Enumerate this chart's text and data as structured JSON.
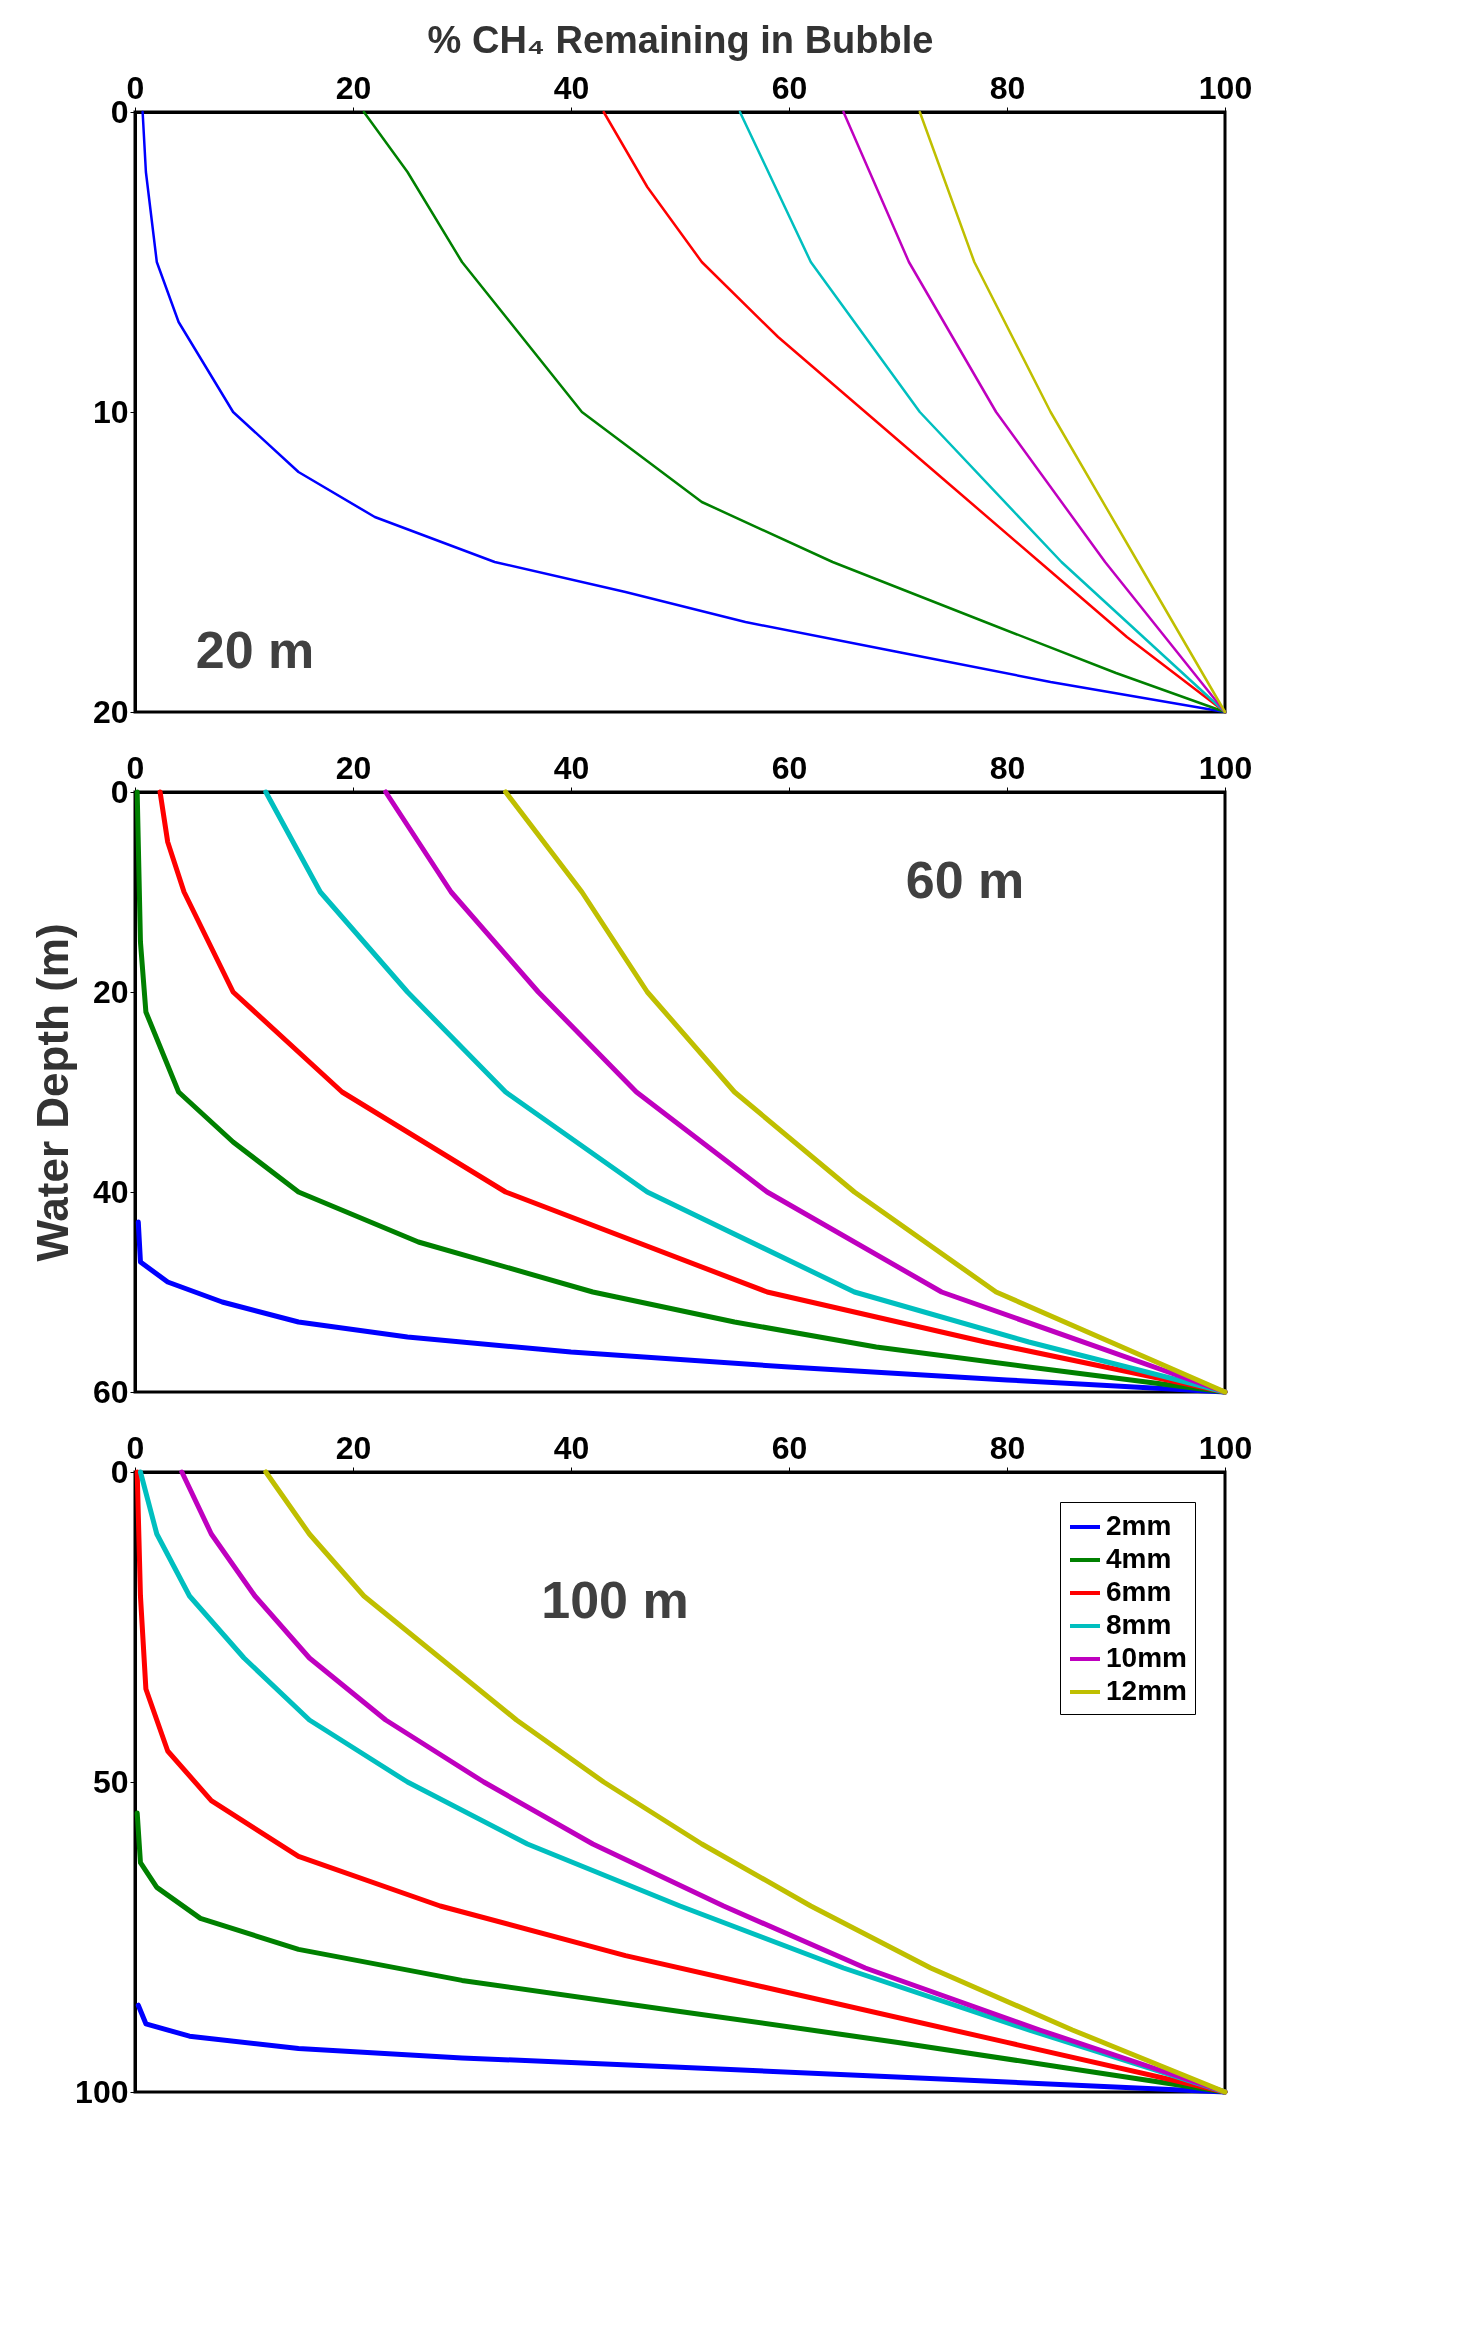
{
  "chart_data": [
    {
      "type": "line",
      "xlabel": "% CH₄ Remaining in Bubble",
      "annotations": [
        "20 m"
      ],
      "xlim": [
        0,
        100
      ],
      "xticks": [
        0,
        20,
        40,
        60,
        80,
        100
      ],
      "ylim": [
        20,
        0
      ],
      "yticks": [
        0,
        10,
        20
      ],
      "grid": false,
      "series": [
        {
          "color": "#0000ff",
          "x": [
            0.7,
            1,
            2,
            4,
            9,
            15,
            22,
            33,
            45,
            56,
            70,
            84,
            100
          ],
          "values": [
            0,
            2,
            5,
            7,
            10,
            12,
            13.5,
            15,
            16,
            17,
            18,
            19,
            20
          ]
        },
        {
          "color": "#008000",
          "x": [
            21,
            25,
            30,
            41,
            52,
            64,
            78,
            90,
            100
          ],
          "values": [
            0,
            2,
            5,
            10,
            13,
            15,
            17,
            18.7,
            20
          ]
        },
        {
          "color": "#ff0000",
          "x": [
            43,
            47,
            52,
            59,
            67,
            75,
            83,
            91,
            100
          ],
          "values": [
            0,
            2.5,
            5,
            7.5,
            10,
            12.5,
            15,
            17.5,
            20
          ]
        },
        {
          "color": "#00bfbf",
          "x": [
            55.5,
            62,
            72,
            85,
            100
          ],
          "values": [
            0,
            5,
            10,
            15,
            20
          ]
        },
        {
          "color": "#bf00bf",
          "x": [
            65,
            71,
            79,
            89,
            100
          ],
          "values": [
            0,
            5,
            10,
            15,
            20
          ]
        },
        {
          "color": "#bfbf00",
          "x": [
            72,
            77,
            84,
            92,
            100
          ],
          "values": [
            0,
            5,
            10,
            15,
            20
          ]
        }
      ]
    },
    {
      "type": "line",
      "ylabel": "Water Depth (m)",
      "annotations": [
        "60 m"
      ],
      "xlim": [
        0,
        100
      ],
      "xticks": [
        0,
        20,
        40,
        60,
        80,
        100
      ],
      "ylim": [
        60,
        0
      ],
      "yticks": [
        0,
        20,
        40,
        60
      ],
      "grid": false,
      "series": [
        {
          "color": "#0000ff",
          "x": [
            0.3,
            0.5,
            3,
            8,
            15,
            25,
            40,
            60,
            80,
            100
          ],
          "values": [
            43,
            47,
            49,
            51,
            53,
            54.5,
            56,
            57.5,
            58.8,
            60
          ]
        },
        {
          "color": "#008000",
          "x": [
            0.2,
            0.5,
            1,
            4,
            9,
            15,
            26,
            42,
            55,
            68,
            82,
            100
          ],
          "values": [
            0,
            15,
            22,
            30,
            35,
            40,
            45,
            50,
            53,
            55.5,
            57.5,
            60
          ]
        },
        {
          "color": "#ff0000",
          "x": [
            2.3,
            3,
            4.5,
            9,
            19,
            34,
            58,
            78,
            100
          ],
          "values": [
            0,
            5,
            10,
            20,
            30,
            40,
            50,
            55,
            60
          ]
        },
        {
          "color": "#00bfbf",
          "x": [
            12,
            17,
            25,
            34,
            47,
            66,
            82,
            100
          ],
          "values": [
            0,
            10,
            20,
            30,
            40,
            50,
            55,
            60
          ]
        },
        {
          "color": "#bf00bf",
          "x": [
            23,
            29,
            37,
            46,
            58,
            74,
            100
          ],
          "values": [
            0,
            10,
            20,
            30,
            40,
            50,
            60
          ]
        },
        {
          "color": "#bfbf00",
          "x": [
            34,
            41,
            47,
            55,
            66,
            79,
            100
          ],
          "values": [
            0,
            10,
            20,
            30,
            40,
            50,
            60
          ]
        }
      ]
    },
    {
      "type": "line",
      "annotations": [
        "100 m"
      ],
      "xlim": [
        0,
        100
      ],
      "xticks": [
        0,
        20,
        40,
        60,
        80,
        100
      ],
      "ylim": [
        100,
        0
      ],
      "yticks": [
        0,
        50,
        100
      ],
      "grid": false,
      "legend": "top right",
      "series": [
        {
          "name": "2mm",
          "color": "#0000ff",
          "x": [
            0.3,
            1,
            5,
            15,
            30,
            50,
            75,
            100
          ],
          "values": [
            86,
            89,
            91,
            93,
            94.5,
            96,
            98,
            100
          ]
        },
        {
          "name": "4mm",
          "color": "#008000",
          "x": [
            0.2,
            0.5,
            2,
            6,
            15,
            30,
            50,
            70,
            85,
            100
          ],
          "values": [
            55,
            63,
            67,
            72,
            77,
            82,
            87,
            92,
            96,
            100
          ]
        },
        {
          "name": "6mm",
          "color": "#ff0000",
          "x": [
            0.2,
            0.5,
            1,
            3,
            7,
            15,
            28,
            45,
            60,
            80,
            100
          ],
          "values": [
            0,
            20,
            35,
            45,
            53,
            62,
            70,
            78,
            84,
            92,
            100
          ]
        },
        {
          "name": "8mm",
          "color": "#00bfbf",
          "x": [
            0.5,
            2,
            5,
            10,
            16,
            25,
            36,
            50,
            65,
            82,
            100
          ],
          "values": [
            0,
            10,
            20,
            30,
            40,
            50,
            60,
            70,
            80,
            90,
            100
          ]
        },
        {
          "name": "10mm",
          "color": "#bf00bf",
          "x": [
            4.3,
            7,
            11,
            16,
            23,
            32,
            42,
            54,
            67,
            83,
            100
          ],
          "values": [
            0,
            10,
            20,
            30,
            40,
            50,
            60,
            70,
            80,
            90,
            100
          ]
        },
        {
          "name": "12mm",
          "color": "#bfbf00",
          "x": [
            12,
            16,
            21,
            28,
            35,
            43,
            52,
            62,
            73,
            86,
            100
          ],
          "values": [
            0,
            10,
            20,
            30,
            40,
            50,
            60,
            70,
            80,
            90,
            100
          ]
        }
      ]
    }
  ]
}
